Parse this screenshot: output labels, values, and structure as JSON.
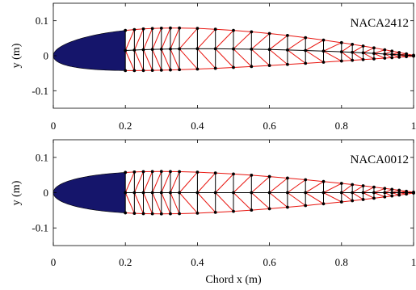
{
  "colors": {
    "leading_edge_fill": "#15156b",
    "diagonal": "#e8140e",
    "chord_line": "#000000",
    "vertical": "#000000",
    "node": "#000000"
  },
  "chart_data": [
    {
      "type": "scatter",
      "annotation": "NACA2412",
      "xlabel": "",
      "ylabel": "y (m)",
      "xlim": [
        0,
        1
      ],
      "ylim": [
        -0.15,
        0.15
      ],
      "xticks": [
        "0",
        "0.2",
        "0.4",
        "0.6",
        "0.8",
        "1"
      ],
      "yticks": [
        "0.1",
        "0",
        "-0.1"
      ],
      "ytick_values": [
        0.1,
        0,
        -0.1
      ],
      "grid": false,
      "solid_leading_edge_to": 0.2,
      "truss_x": [
        0.2,
        0.225,
        0.25,
        0.275,
        0.3,
        0.325,
        0.35,
        0.4,
        0.45,
        0.5,
        0.55,
        0.6,
        0.65,
        0.7,
        0.75,
        0.8,
        0.83,
        0.86,
        0.89,
        0.92,
        0.94,
        0.96,
        0.98,
        1.0
      ],
      "airfoil": {
        "max_camber": 0.02,
        "camber_pos": 0.4,
        "thickness": 0.12
      }
    },
    {
      "type": "scatter",
      "annotation": "NACA0012",
      "xlabel": "Chord x (m)",
      "ylabel": "y (m)",
      "xlim": [
        0,
        1
      ],
      "ylim": [
        -0.15,
        0.15
      ],
      "xticks": [
        "0",
        "0.2",
        "0.4",
        "0.6",
        "0.8",
        "1"
      ],
      "yticks": [
        "0.1",
        "0",
        "-0.1"
      ],
      "ytick_values": [
        0.1,
        0,
        -0.1
      ],
      "grid": false,
      "solid_leading_edge_to": 0.2,
      "truss_x": [
        0.2,
        0.225,
        0.25,
        0.275,
        0.3,
        0.325,
        0.35,
        0.4,
        0.45,
        0.5,
        0.55,
        0.6,
        0.65,
        0.7,
        0.75,
        0.8,
        0.83,
        0.86,
        0.89,
        0.92,
        0.94,
        0.96,
        0.98,
        1.0
      ],
      "airfoil": {
        "max_camber": 0.0,
        "camber_pos": 0.4,
        "thickness": 0.12
      }
    }
  ]
}
